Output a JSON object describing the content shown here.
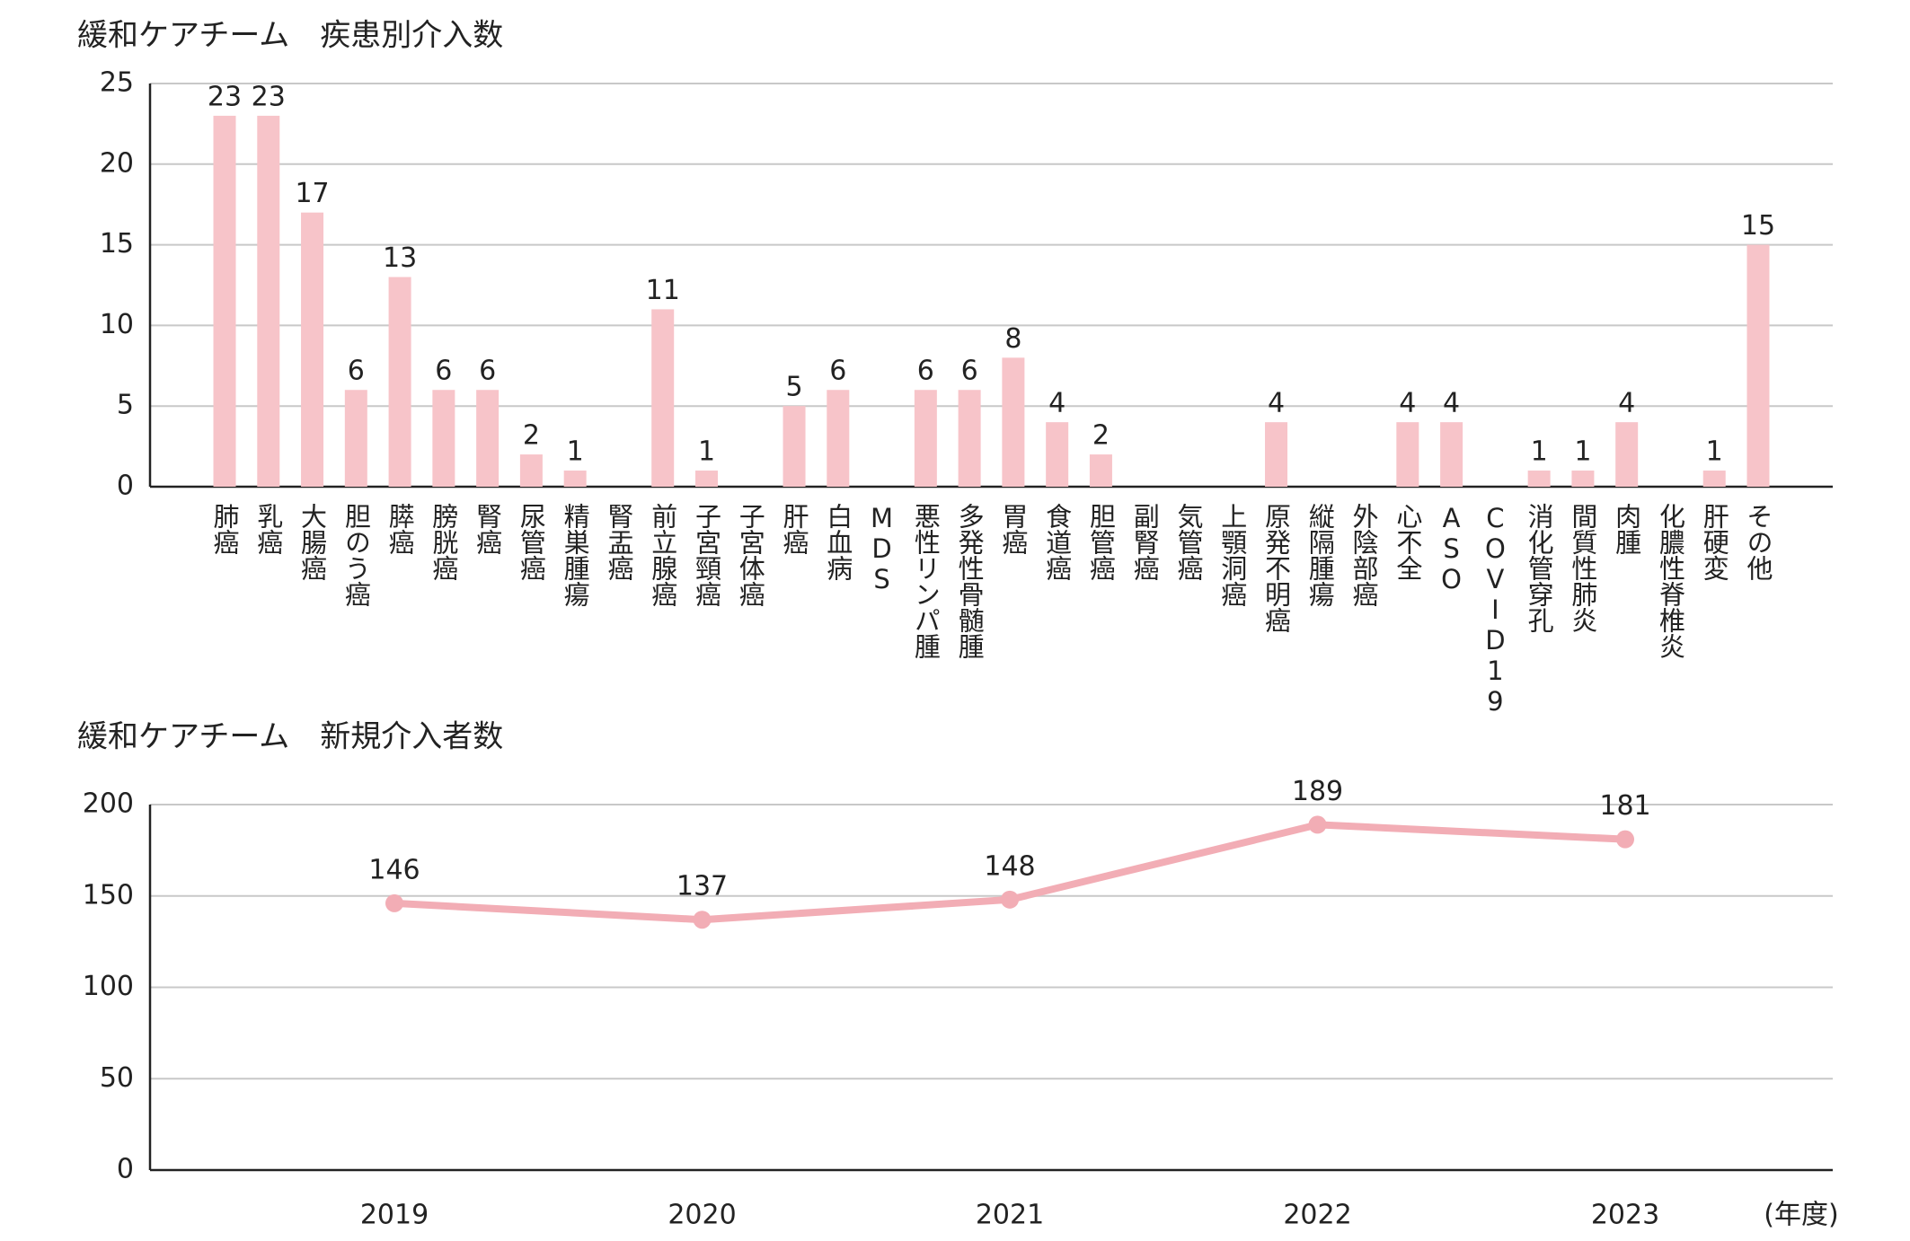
{
  "chart_data": [
    {
      "type": "bar",
      "title": "緩和ケアチーム　疾患別介入数",
      "categories": [
        "肺癌",
        "乳癌",
        "大腸癌",
        "胆のう癌",
        "膵癌",
        "膀胱癌",
        "腎癌",
        "尿管癌",
        "精巣腫瘍",
        "腎盂癌",
        "前立腺癌",
        "子宮頸癌",
        "子宮体癌",
        "肝癌",
        "白血病",
        "MDS",
        "悪性リンパ腫",
        "多発性骨髄腫",
        "胃癌",
        "食道癌",
        "胆管癌",
        "副腎癌",
        "気管癌",
        "上顎洞癌",
        "原発不明癌",
        "縦隔腫瘍",
        "外陰部癌",
        "心不全",
        "ASO",
        "COVID19",
        "消化管穿孔",
        "間質性肺炎",
        "肉腫",
        "化膿性脊椎炎",
        "肝硬変",
        "その他"
      ],
      "values": [
        23,
        23,
        17,
        6,
        13,
        6,
        6,
        2,
        1,
        0,
        11,
        1,
        0,
        5,
        6,
        0,
        6,
        6,
        8,
        4,
        2,
        0,
        0,
        0,
        4,
        0,
        0,
        4,
        4,
        0,
        1,
        1,
        4,
        0,
        1,
        15
      ],
      "color": "#f7c4c9",
      "ylim": [
        0,
        25
      ],
      "yticks": [
        0,
        5,
        10,
        15,
        20,
        25
      ],
      "grid": true
    },
    {
      "type": "line",
      "title": "緩和ケアチーム　新規介入者数",
      "x_label": "(年度)",
      "categories": [
        "2019",
        "2020",
        "2021",
        "2022",
        "2023"
      ],
      "values": [
        146,
        137,
        148,
        189,
        181
      ],
      "color": "#f2adb5",
      "ylim": [
        0,
        200
      ],
      "yticks": [
        0,
        50,
        100,
        150,
        200
      ],
      "grid": true
    }
  ]
}
